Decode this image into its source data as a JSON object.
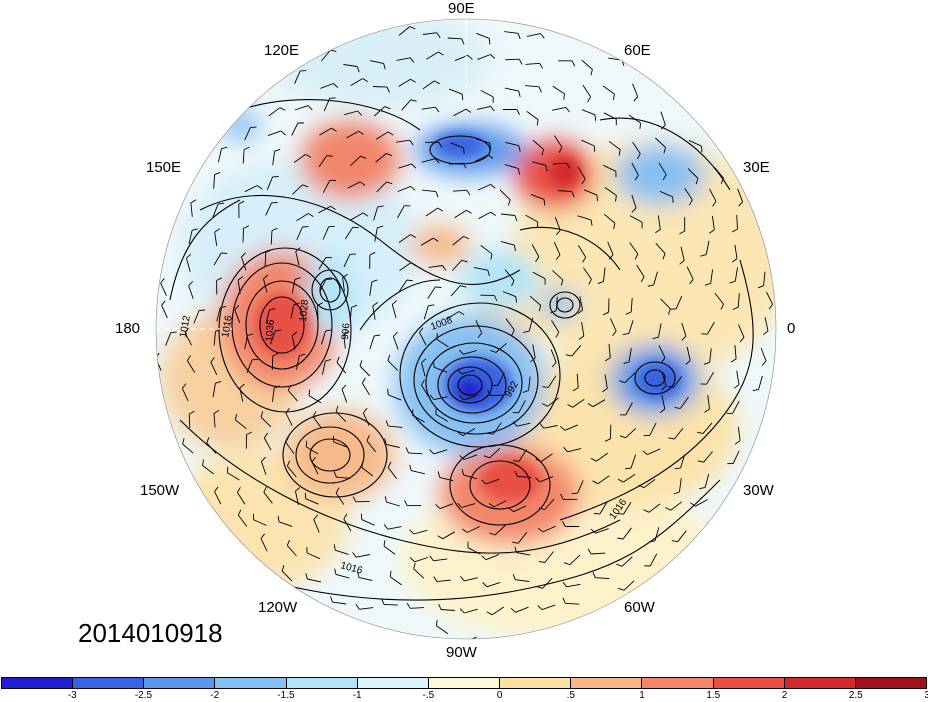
{
  "timestamp": "2014010918",
  "longitude_labels": {
    "lon_90e": "90E",
    "lon_60e": "60E",
    "lon_120e": "120E",
    "lon_150e": "150E",
    "lon_30e": "30E",
    "lon_180": "180",
    "lon_0": "0",
    "lon_150w": "150W",
    "lon_30w": "30W",
    "lon_120w": "120W",
    "lon_60w": "60W",
    "lon_90w": "90W"
  },
  "contour_labels": [
    "1012",
    "1016",
    "1028",
    "1036",
    "996",
    "1008",
    "992",
    "1016",
    "1016"
  ],
  "colorbar": {
    "colors": [
      "#1f1fcf",
      "#3b62e0",
      "#5b97ea",
      "#86bff2",
      "#b2e4f7",
      "#dcf4fb",
      "#fdf6d8",
      "#fbe1a6",
      "#f7b98a",
      "#f2856a",
      "#e84f45",
      "#d02a2a",
      "#a01018"
    ],
    "tick_labels": [
      "-3",
      "-2.5",
      "-2",
      "-1.5",
      "-1",
      "-.5",
      "0",
      ".5",
      "1",
      "1.5",
      "2",
      "2.5",
      "3"
    ]
  }
}
